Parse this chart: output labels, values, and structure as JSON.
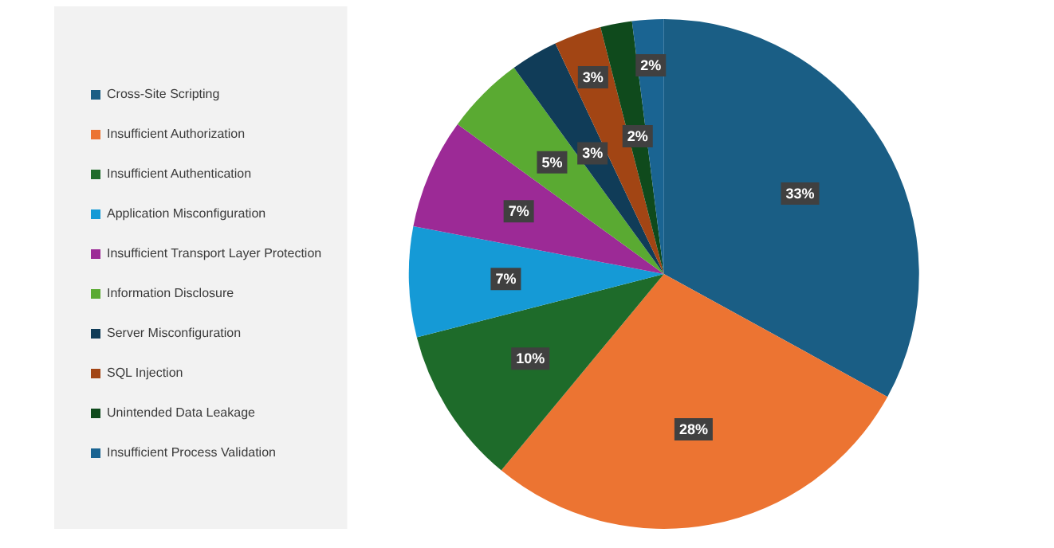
{
  "chart_data": {
    "type": "pie",
    "categories": [
      "Cross-Site Scripting",
      "Insufficient Authorization",
      "Insufficient Authentication",
      "Application Misconfiguration",
      "Insufficient Transport Layer Protection",
      "Information Disclosure",
      "Server Misconfiguration",
      "SQL Injection",
      "Unintended Data Leakage",
      "Insufficient Process Validation"
    ],
    "values": [
      33,
      28,
      10,
      7,
      7,
      5,
      3,
      3,
      2,
      2
    ],
    "value_labels": [
      "33%",
      "28%",
      "10%",
      "7%",
      "7%",
      "5%",
      "3%",
      "3%",
      "2%",
      "2%"
    ],
    "colors": [
      "#1a5e85",
      "#ec7432",
      "#1e6b2a",
      "#159ad6",
      "#9c2a96",
      "#5aaa32",
      "#103c58",
      "#a24514",
      "#0f4a1c",
      "#1a6492"
    ],
    "legend": "left"
  }
}
